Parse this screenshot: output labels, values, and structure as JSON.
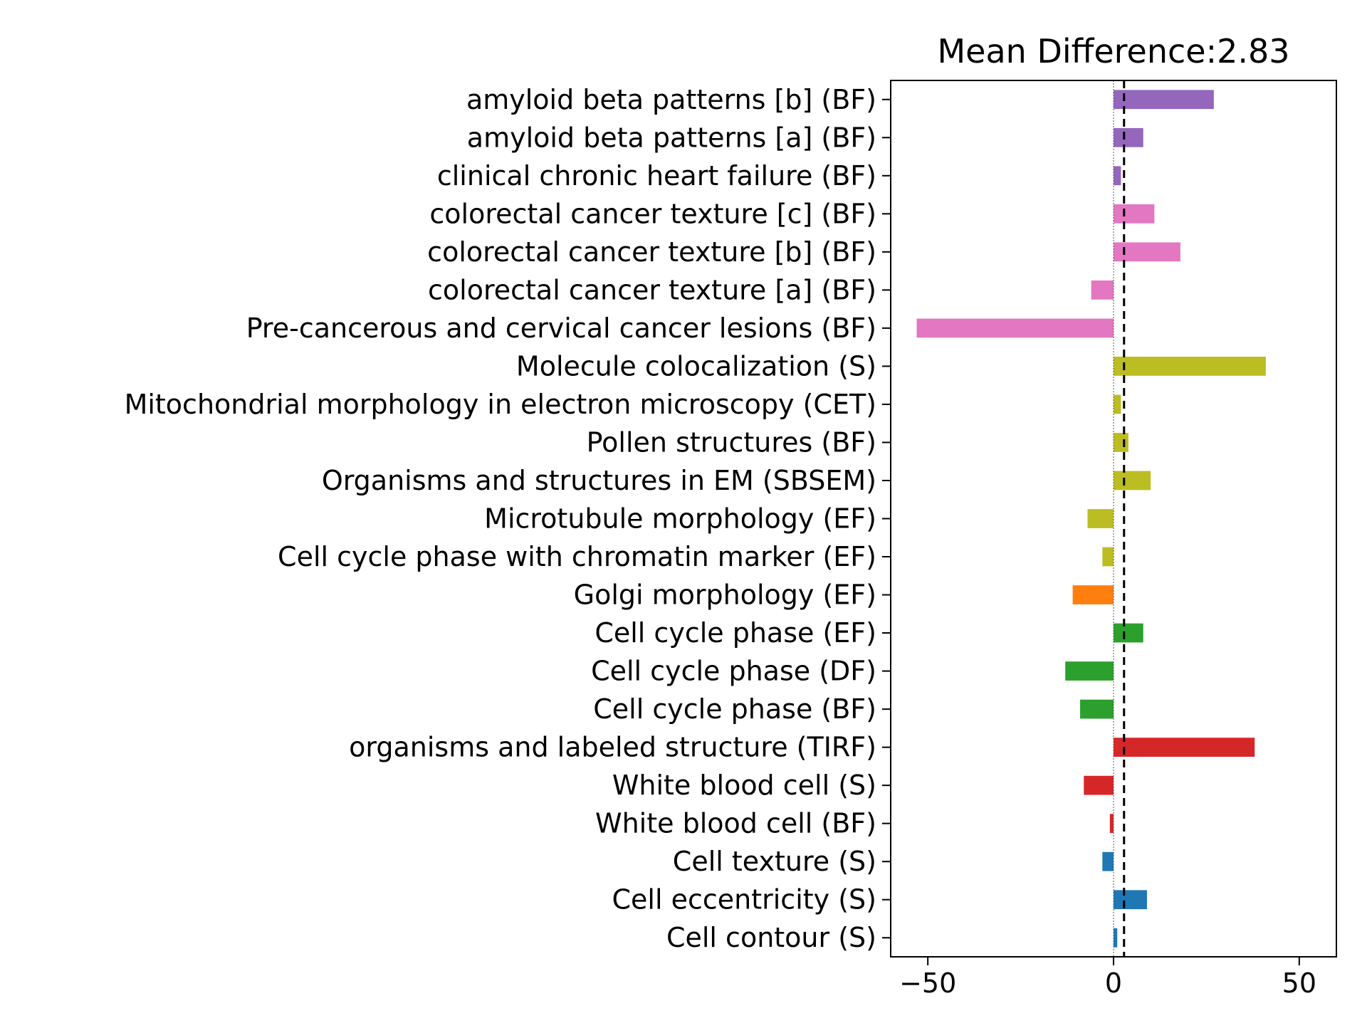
{
  "chart_data": {
    "type": "bar",
    "orientation": "horizontal",
    "title": "Mean Difference:2.83",
    "xlabel": "",
    "ylabel": "",
    "xlim": [
      -60,
      60
    ],
    "xticks": [
      -50,
      0,
      50
    ],
    "xtick_labels": [
      "−50",
      "0",
      "50"
    ],
    "grid": false,
    "legend": "none",
    "reference_lines": [
      {
        "x": 0,
        "style": "dotted",
        "color": "#555555"
      },
      {
        "x": 2.83,
        "style": "dashed",
        "color": "#000000"
      }
    ],
    "categories": [
      "amyloid beta patterns [b] (BF)",
      "amyloid beta patterns [a] (BF)",
      "clinical chronic heart failure (BF)",
      "colorectal cancer texture [c] (BF)",
      "colorectal cancer texture [b] (BF)",
      "colorectal cancer texture [a] (BF)",
      "Pre-cancerous and cervical cancer lesions (BF)",
      "Molecule colocalization (S)",
      "Mitochondrial morphology in electron microscopy (CET)",
      "Pollen structures (BF)",
      "Organisms and structures in EM (SBSEM)",
      "Microtubule morphology (EF)",
      "Cell cycle phase with chromatin marker (EF)",
      "Golgi morphology (EF)",
      "Cell cycle phase (EF)",
      "Cell cycle phase (DF)",
      "Cell cycle phase (BF)",
      "organisms and labeled structure (TIRF)",
      "White blood cell (S)",
      "White blood cell (BF)",
      "Cell texture (S)",
      "Cell eccentricity (S)",
      "Cell contour (S)"
    ],
    "values": [
      27,
      8,
      2,
      11,
      18,
      -6,
      -53,
      41,
      2,
      4,
      10,
      -7,
      -3,
      -11,
      8,
      -13,
      -9,
      38,
      -8,
      -1,
      -3,
      9,
      1
    ],
    "colors": [
      "#9467bd",
      "#9467bd",
      "#9467bd",
      "#e377c2",
      "#e377c2",
      "#e377c2",
      "#e377c2",
      "#bcbd22",
      "#bcbd22",
      "#bcbd22",
      "#bcbd22",
      "#bcbd22",
      "#bcbd22",
      "#ff7f0e",
      "#2ca02c",
      "#2ca02c",
      "#2ca02c",
      "#d62728",
      "#d62728",
      "#d62728",
      "#1f77b4",
      "#1f77b4",
      "#1f77b4"
    ]
  }
}
